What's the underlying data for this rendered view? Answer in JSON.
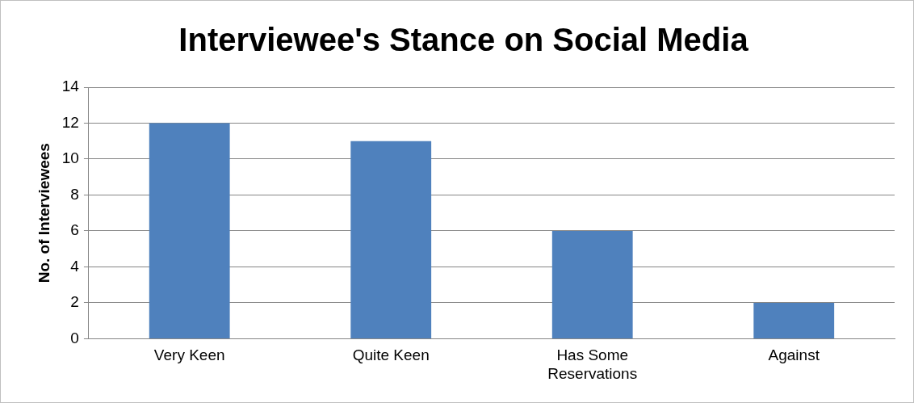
{
  "chart_data": {
    "type": "bar",
    "title": "Interviewee's Stance on Social Media",
    "ylabel": "No. of Interviewees",
    "categories": [
      "Very Keen",
      "Quite Keen",
      "Has Some Reservations",
      "Against"
    ],
    "values": [
      12,
      11,
      6,
      2
    ],
    "color": "#4f81bd",
    "ylim": [
      0,
      14
    ],
    "yticks": [
      0,
      2,
      4,
      6,
      8,
      10,
      12,
      14
    ],
    "grid": "y",
    "legend": false
  }
}
